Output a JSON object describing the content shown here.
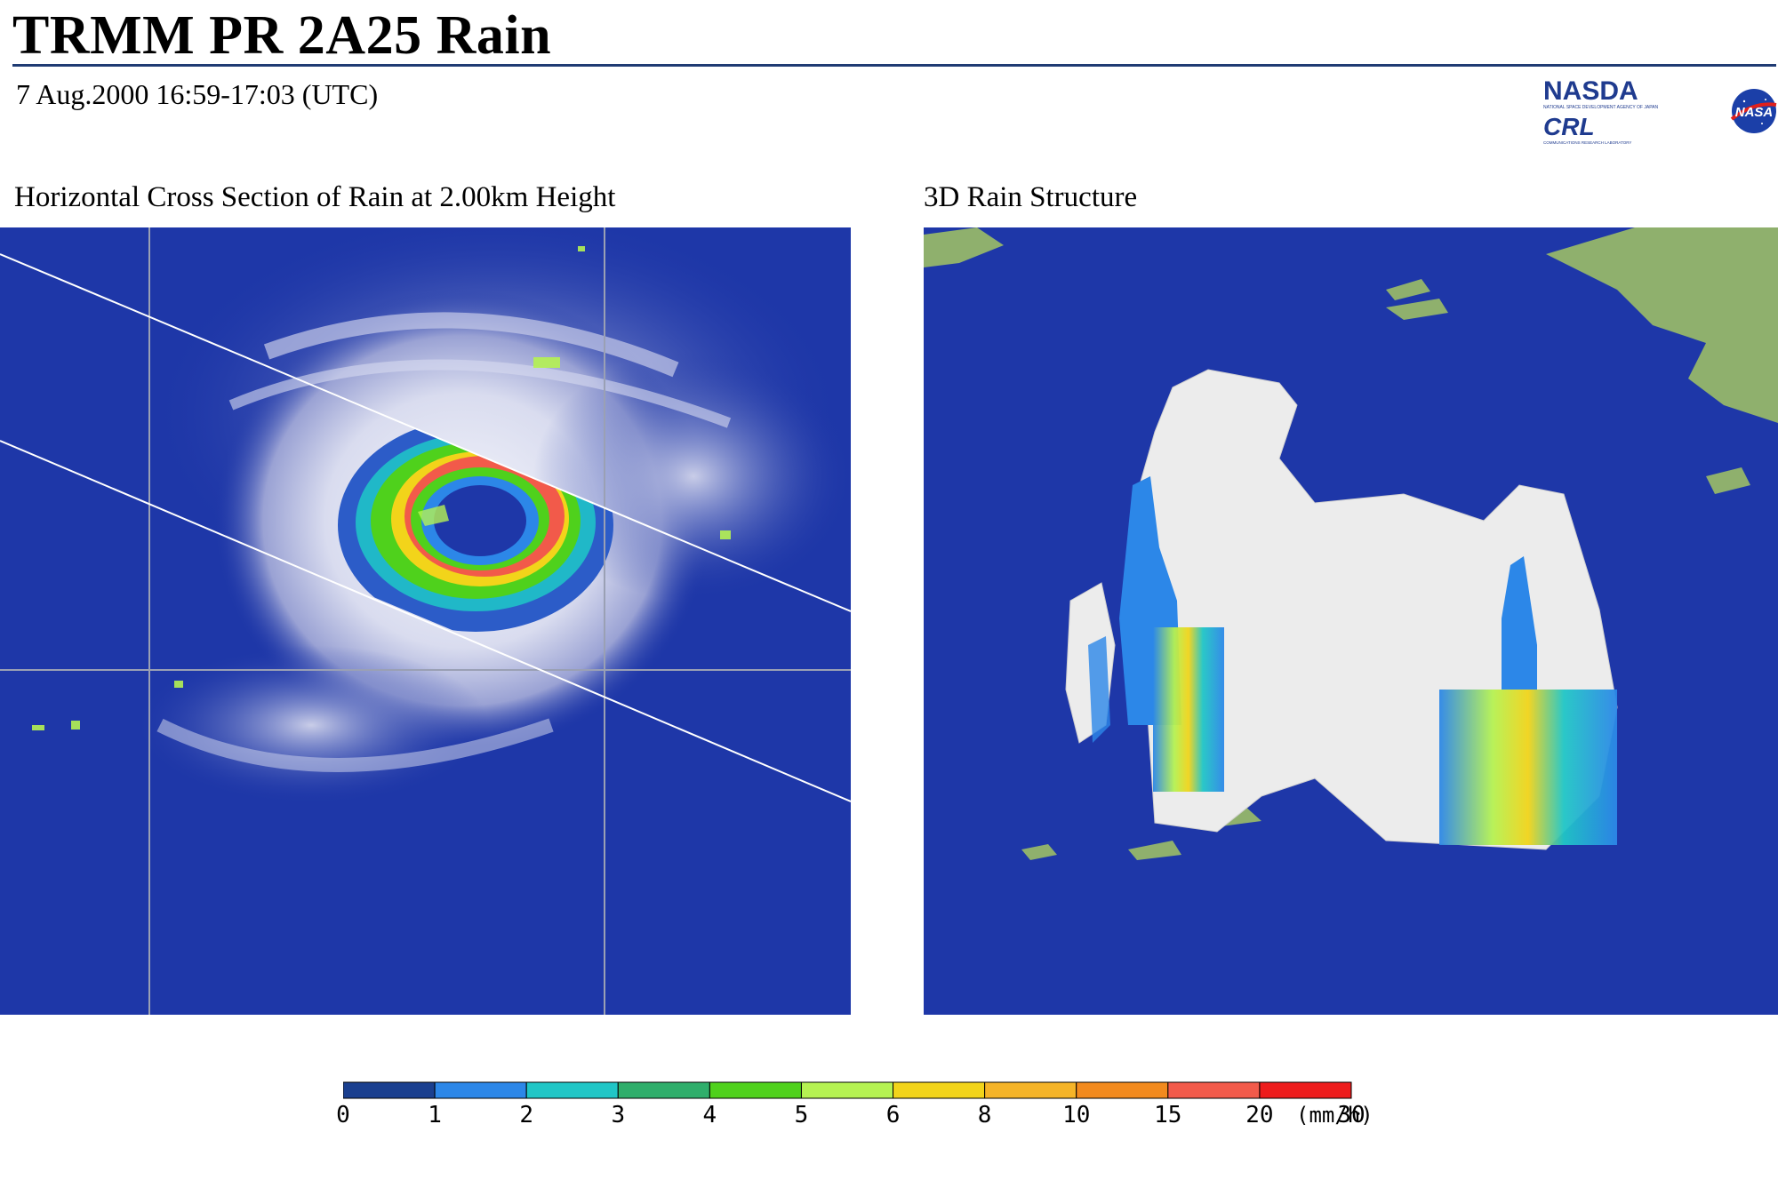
{
  "header": {
    "title": "TRMM PR 2A25 Rain",
    "subtitle": "7 Aug.2000 16:59-17:03 (UTC)"
  },
  "logos": {
    "nasda": "NASDA",
    "nasda_sub": "NATIONAL SPACE DEVELOPMENT AGENCY OF JAPAN",
    "crl": "CRL",
    "crl_sub": "COMMUNICATIONS RESEARCH LABORATORY",
    "nasa": "NASA"
  },
  "panels": {
    "left_title": "Horizontal Cross Section of Rain at 2.00km Height",
    "right_title": "3D Rain Structure"
  },
  "colorbar": {
    "ticks": [
      "0",
      "1",
      "2",
      "3",
      "4",
      "5",
      "6",
      "8",
      "10",
      "15",
      "20",
      "30"
    ],
    "unit": "(mm/h)",
    "colors": [
      "#1a3f8f",
      "#2c87e8",
      "#20c6c6",
      "#2fae6b",
      "#4fd11c",
      "#b5f252",
      "#f2d41a",
      "#f5b428",
      "#f28a1e",
      "#f25a4a",
      "#ee1c1c",
      "#c01010"
    ]
  },
  "colors": {
    "ocean": "#1e37a8",
    "land": "#8fb06d",
    "grid": "#9aa0b4"
  }
}
